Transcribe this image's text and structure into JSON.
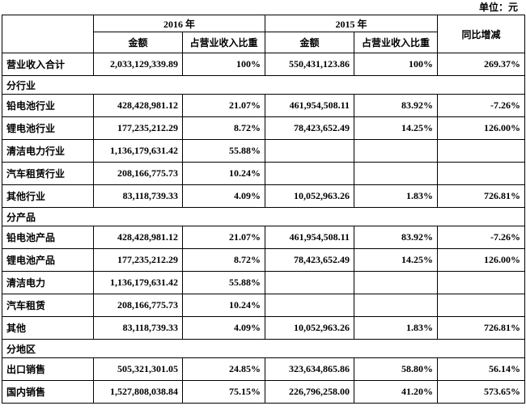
{
  "unit_label": "单位：元",
  "table": {
    "year_headers": [
      "2016 年",
      "2015 年"
    ],
    "sub_headers": [
      "金额",
      "占营业收入比重",
      "金额",
      "占营业收入比重"
    ],
    "yoy_header": "同比增减",
    "rows": [
      {
        "type": "data",
        "label": "营业收入合计",
        "cells": [
          "2,033,129,339.89",
          "100%",
          "550,431,123.86",
          "100%",
          "269.37%"
        ]
      },
      {
        "type": "section",
        "label": "分行业"
      },
      {
        "type": "data",
        "label": "铅电池行业",
        "cells": [
          "428,428,981.12",
          "21.07%",
          "461,954,508.11",
          "83.92%",
          "-7.26%"
        ]
      },
      {
        "type": "data",
        "label": "锂电池行业",
        "cells": [
          "177,235,212.29",
          "8.72%",
          "78,423,652.49",
          "14.25%",
          "126.00%"
        ]
      },
      {
        "type": "data",
        "label": "清洁电力行业",
        "cells": [
          "1,136,179,631.42",
          "55.88%",
          "",
          "",
          ""
        ]
      },
      {
        "type": "data",
        "label": "汽车租赁行业",
        "cells": [
          "208,166,775.73",
          "10.24%",
          "",
          "",
          ""
        ]
      },
      {
        "type": "data",
        "label": "其他行业",
        "cells": [
          "83,118,739.33",
          "4.09%",
          "10,052,963.26",
          "1.83%",
          "726.81%"
        ]
      },
      {
        "type": "section",
        "label": "分产品"
      },
      {
        "type": "data",
        "label": "铅电池产品",
        "cells": [
          "428,428,981.12",
          "21.07%",
          "461,954,508.11",
          "83.92%",
          "-7.26%"
        ]
      },
      {
        "type": "data",
        "label": "锂电池产品",
        "cells": [
          "177,235,212.29",
          "8.72%",
          "78,423,652.49",
          "14.25%",
          "126.00%"
        ]
      },
      {
        "type": "data",
        "label": "清洁电力",
        "cells": [
          "1,136,179,631.42",
          "55.88%",
          "",
          "",
          ""
        ]
      },
      {
        "type": "data",
        "label": "汽车租赁",
        "cells": [
          "208,166,775.73",
          "10.24%",
          "",
          "",
          ""
        ]
      },
      {
        "type": "data",
        "label": "其他",
        "cells": [
          "83,118,739.33",
          "4.09%",
          "10,052,963.26",
          "1.83%",
          "726.81%"
        ]
      },
      {
        "type": "section",
        "label": "分地区"
      },
      {
        "type": "data",
        "label": "出口销售",
        "cells": [
          "505,321,301.05",
          "24.85%",
          "323,634,865.86",
          "58.80%",
          "56.14%"
        ]
      },
      {
        "type": "data",
        "label": "国内销售",
        "cells": [
          "1,527,808,038.84",
          "75.15%",
          "226,796,258.00",
          "41.20%",
          "573.65%"
        ]
      }
    ]
  }
}
